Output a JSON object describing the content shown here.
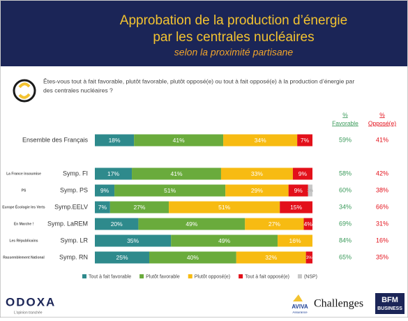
{
  "chart_data": {
    "type": "bar",
    "orientation": "horizontal",
    "stacked": true,
    "title": [
      "Approbation de la production d’énergie",
      "par les centrales nucléaires"
    ],
    "subtitle": "selon la proximité partisane",
    "question": [
      "Êtes-vous tout à fait favorable, plutôt favorable, plutôt opposé(e) ou tout à fait opposé(e) à la production d’énergie par",
      "des centrales nucléaires ?"
    ],
    "categories": [
      "Ensemble des Français",
      "Symp. FI",
      "Symp. PS",
      "Symp.EELV",
      "Symp. LaREM",
      "Symp. LR",
      "Symp. RN"
    ],
    "party_logos": [
      null,
      "La France insoumise",
      "PS",
      "Europe Écologie les Verts",
      "En Marche !",
      "Les Républicains",
      "Rassemblement National"
    ],
    "xlim": [
      0,
      100
    ],
    "series": [
      {
        "name": "Tout à fait favorable",
        "color": "#2e8a8c",
        "values": [
          18,
          17,
          9,
          7,
          20,
          35,
          25
        ],
        "value_labels": [
          "18%",
          "17%",
          "9%",
          "7%",
          "20%",
          "35%",
          "25%"
        ]
      },
      {
        "name": "Plutôt favorable",
        "color": "#6aab3c",
        "values": [
          41,
          41,
          51,
          27,
          49,
          49,
          40
        ],
        "value_labels": [
          "41%",
          "41%",
          "51%",
          "27%",
          "49%",
          "49%",
          "40%"
        ]
      },
      {
        "name": "Plutôt opposé(e)",
        "color": "#f7bb12",
        "values": [
          34,
          33,
          29,
          51,
          27,
          16,
          32
        ],
        "value_labels": [
          "34%",
          "33%",
          "29%",
          "51%",
          "27%",
          "16%",
          "32%"
        ]
      },
      {
        "name": "Tout à fait opposé(e)",
        "color": "#e3101a",
        "values": [
          7,
          9,
          9,
          15,
          4,
          null,
          3
        ],
        "value_labels": [
          "7%",
          "9%",
          "9%",
          "15%",
          "4%",
          null,
          "3%"
        ]
      },
      {
        "name": "(NSP)",
        "color": "#c8c8c8",
        "values": [
          null,
          null,
          2,
          null,
          null,
          null,
          null
        ],
        "value_labels": [
          null,
          null,
          "2%",
          null,
          null,
          null,
          null
        ]
      }
    ],
    "summary_columns": [
      {
        "header": [
          "%",
          "Favorable"
        ],
        "color": "#3a9a5a",
        "values": [
          59,
          58,
          60,
          34,
          69,
          84,
          65
        ],
        "value_labels": [
          "59%",
          "58%",
          "60%",
          "34%",
          "69%",
          "84%",
          "65%"
        ]
      },
      {
        "header": [
          "%",
          "Opposé(e)"
        ],
        "color": "#e3101a",
        "values": [
          41,
          42,
          38,
          66,
          31,
          16,
          35
        ],
        "value_labels": [
          "41%",
          "42%",
          "38%",
          "66%",
          "31%",
          "16%",
          "35%"
        ]
      }
    ],
    "footer": {
      "brand": "ODOXA",
      "tagline": "L’opinion tranchée",
      "partners": [
        "AVIVA",
        "Assurance",
        "Challenges",
        "BFM",
        "BUSINESS"
      ]
    }
  }
}
